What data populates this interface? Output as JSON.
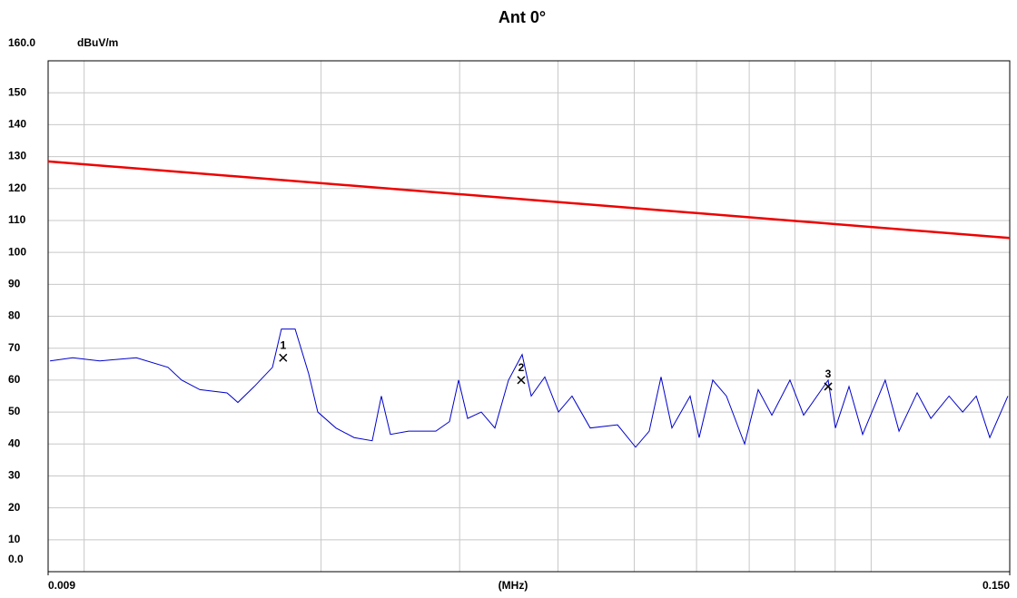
{
  "chart_data": {
    "type": "line",
    "title": "Ant 0°",
    "ylabel": "dBuV/m",
    "xlabel": "(MHz)",
    "xscale": "log",
    "xlim": [
      0.009,
      0.15
    ],
    "ylim": [
      0,
      160
    ],
    "xticks": [
      {
        "value": 0.009,
        "label": "0.009"
      },
      {
        "value": 0.15,
        "label": "0.150"
      }
    ],
    "xgrid": [
      0.01,
      0.02,
      0.03,
      0.04,
      0.05,
      0.06,
      0.07,
      0.08,
      0.09,
      0.1
    ],
    "yticks": [
      {
        "value": 0,
        "label": "0.0"
      },
      10,
      20,
      30,
      40,
      50,
      60,
      70,
      80,
      90,
      100,
      110,
      120,
      130,
      140,
      150,
      {
        "value": 160,
        "label": "160.0"
      }
    ],
    "grid": true,
    "series": [
      {
        "color": "#ee0000",
        "x": [
          0.009,
          0.15
        ],
        "values": [
          128.5,
          104.5
        ]
      },
      {
        "color": "#0000cc",
        "x": [
          0.00905,
          0.00967,
          0.01047,
          0.01165,
          0.01278,
          0.0133,
          0.01403,
          0.01519,
          0.01568,
          0.01645,
          0.01735,
          0.01781,
          0.01854,
          0.01929,
          0.01981,
          0.02089,
          0.02203,
          0.02323,
          0.02386,
          0.0245,
          0.02584,
          0.02798,
          0.02912,
          0.02991,
          0.03071,
          0.03196,
          0.03326,
          0.03461,
          0.03602,
          0.03699,
          0.03849,
          0.04006,
          0.04168,
          0.04396,
          0.04761,
          0.0502,
          0.05224,
          0.05408,
          0.05583,
          0.05888,
          0.06046,
          0.06292,
          0.06548,
          0.06906,
          0.07186,
          0.07479,
          0.07886,
          0.08207,
          0.08818,
          0.09007,
          0.09373,
          0.09754,
          0.1042,
          0.1085,
          0.1144,
          0.1191,
          0.1256,
          0.1307,
          0.136,
          0.1415,
          0.1492
        ],
        "values": [
          66,
          67,
          66,
          67,
          64,
          60,
          57,
          56,
          53,
          58,
          64,
          76,
          76,
          62,
          50,
          45,
          42,
          41,
          55,
          43,
          44,
          44,
          47,
          60,
          48,
          50,
          45,
          60,
          68,
          55,
          61,
          50,
          55,
          45,
          46,
          39,
          44,
          61,
          45,
          55,
          42,
          60,
          55,
          40,
          57,
          49,
          60,
          49,
          60,
          45,
          58,
          43,
          60,
          44,
          56,
          48,
          55,
          50,
          55,
          42,
          55
        ]
      }
    ],
    "markers": [
      {
        "label": "1",
        "x": 0.0179,
        "value": 67
      },
      {
        "label": "2",
        "x": 0.03592,
        "value": 60
      },
      {
        "label": "3",
        "x": 0.08818,
        "value": 58
      }
    ]
  }
}
